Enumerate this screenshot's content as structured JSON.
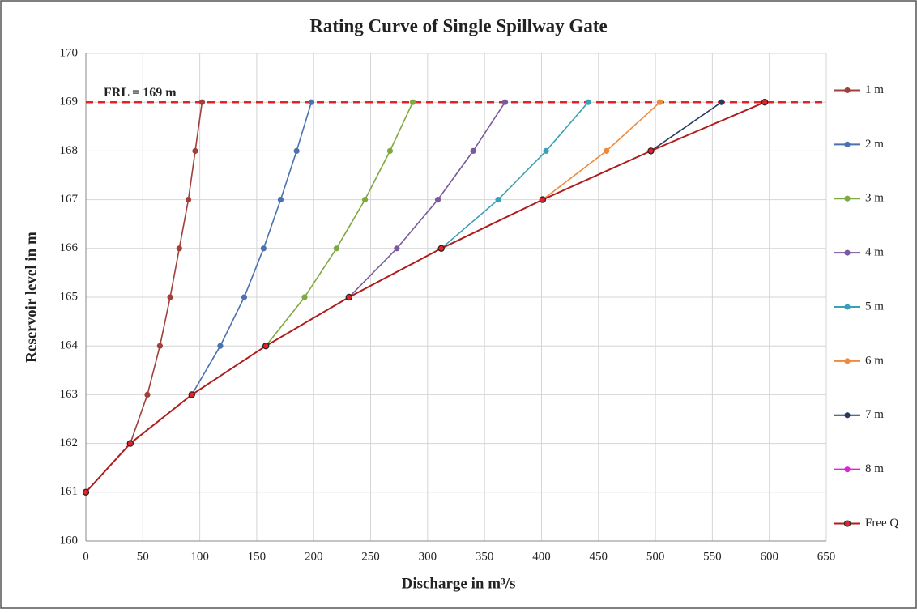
{
  "chart_data": {
    "type": "line",
    "title": "Rating Curve of Single Spillway Gate",
    "x_label": "Discharge in m³/s",
    "y_label": "Reservoir level in m",
    "xlim": [
      0,
      650
    ],
    "xticks": [
      0,
      50,
      100,
      150,
      200,
      250,
      300,
      350,
      400,
      450,
      500,
      550,
      600,
      650
    ],
    "ylim": [
      160,
      170
    ],
    "yticks": [
      160,
      161,
      162,
      163,
      164,
      165,
      166,
      167,
      168,
      169,
      170
    ],
    "grid": true,
    "legend": "right",
    "reference_line": {
      "value": 169,
      "label": "FRL = 169 m",
      "color": "#e8202a"
    },
    "series": [
      {
        "name": "1 m",
        "color": "#a0403a",
        "x": [
          39,
          54,
          65,
          74,
          82,
          90,
          96,
          102
        ],
        "values": [
          162,
          163,
          164,
          165,
          166,
          167,
          168,
          169
        ]
      },
      {
        "name": "2 m",
        "color": "#4a72b0",
        "x": [
          93,
          118,
          139,
          156,
          171,
          185,
          198
        ],
        "values": [
          163,
          164,
          165,
          166,
          167,
          168,
          169
        ]
      },
      {
        "name": "3 m",
        "color": "#7ea840",
        "x": [
          158,
          192,
          220,
          245,
          267,
          287
        ],
        "values": [
          164,
          165,
          166,
          167,
          168,
          169
        ]
      },
      {
        "name": "4 m",
        "color": "#7a5a9e",
        "x": [
          231,
          273,
          309,
          340,
          368
        ],
        "values": [
          165,
          166,
          167,
          168,
          169
        ]
      },
      {
        "name": "5 m",
        "color": "#3aa0b8",
        "x": [
          312,
          362,
          404,
          441
        ],
        "values": [
          166,
          167,
          168,
          169
        ]
      },
      {
        "name": "6 m",
        "color": "#f08a3a",
        "x": [
          401,
          457,
          504
        ],
        "values": [
          167,
          168,
          169
        ]
      },
      {
        "name": "7 m",
        "color": "#243a5e",
        "x": [
          496,
          558
        ],
        "values": [
          168,
          169
        ]
      },
      {
        "name": "8 m",
        "color": "#e020e0",
        "x": [
          596
        ],
        "values": [
          169
        ]
      },
      {
        "name": "Free Q",
        "color": "#b01c1c",
        "marker_color": "#e8202a",
        "marker_edge": "#222222",
        "x": [
          0,
          39,
          93,
          158,
          231,
          312,
          401,
          496,
          596
        ],
        "values": [
          161,
          162,
          163,
          164,
          165,
          166,
          167,
          168,
          169
        ]
      }
    ]
  }
}
